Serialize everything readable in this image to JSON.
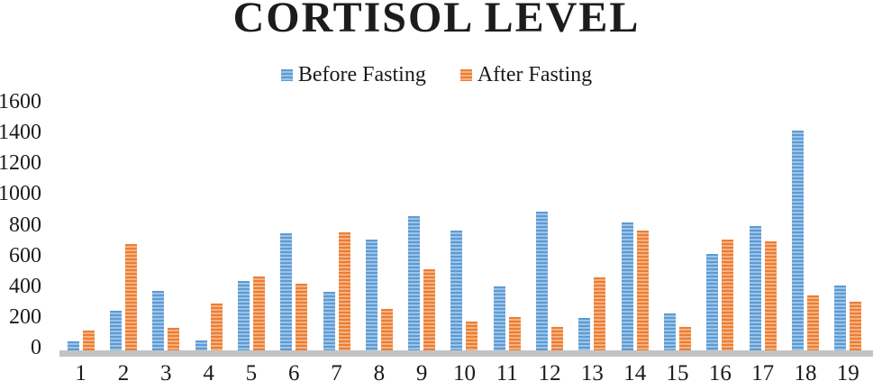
{
  "chart_data": {
    "type": "bar",
    "title": "CORTISOL LEVEL",
    "categories": [
      "1",
      "2",
      "3",
      "4",
      "5",
      "6",
      "7",
      "8",
      "9",
      "10",
      "11",
      "12",
      "13",
      "14",
      "15",
      "16",
      "17",
      "18",
      "19"
    ],
    "series": [
      {
        "name": "Before Fasting",
        "color": "#5B9BD5",
        "color_light": "#9DC3E6",
        "values": [
          60,
          255,
          380,
          65,
          445,
          750,
          375,
          710,
          860,
          770,
          410,
          890,
          210,
          820,
          240,
          620,
          800,
          1410,
          415
        ]
      },
      {
        "name": "After Fasting",
        "color": "#ED7D31",
        "color_light": "#F4B183",
        "values": [
          130,
          680,
          145,
          300,
          475,
          430,
          755,
          265,
          520,
          185,
          215,
          150,
          470,
          770,
          150,
          710,
          700,
          350,
          310
        ]
      }
    ],
    "xlabel": "",
    "ylabel": "",
    "ylim": [
      0,
      1600
    ],
    "yticks": [
      0,
      200,
      400,
      600,
      800,
      1000,
      1200,
      1400,
      1600
    ],
    "grid": false,
    "legend_position": "top",
    "bar_pattern": "horizontal-stripes",
    "baseline_color": "#C3C3C3",
    "text_color": "#1a1a1a",
    "background_color": "#ffffff"
  }
}
